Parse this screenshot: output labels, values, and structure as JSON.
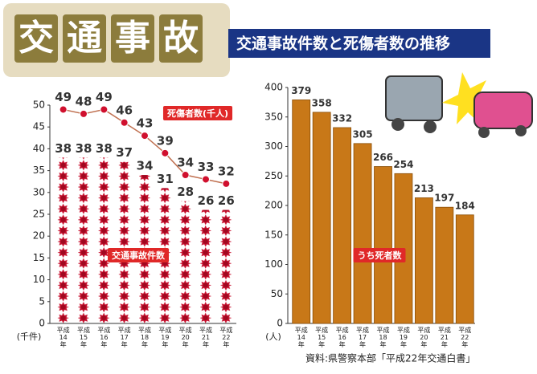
{
  "header": {
    "title": "交通事故",
    "subtitle": "交通事故件数と死傷者数の推移"
  },
  "source": "資料:県警察本部「平成22年交通白書」",
  "chart_data": [
    {
      "type": "bar",
      "y_unit": "(千件)",
      "categories": [
        "平成14年",
        "平成15年",
        "平成16年",
        "平成17年",
        "平成18年",
        "平成19年",
        "平成20年",
        "平成21年",
        "平成22年"
      ],
      "ylim": [
        0,
        50
      ],
      "yticks": [
        0,
        5,
        10,
        15,
        20,
        25,
        30,
        35,
        40,
        45,
        50
      ],
      "series": [
        {
          "name": "交通事故件数",
          "type": "bar",
          "color": "#c8102e",
          "values": [
            38,
            38,
            38,
            37,
            34,
            31,
            28,
            26,
            26
          ]
        },
        {
          "name": "死傷者数(千人)",
          "type": "line",
          "color": "#d0102e",
          "values": [
            49,
            48,
            49,
            46,
            43,
            39,
            34,
            33,
            32
          ]
        }
      ]
    },
    {
      "type": "bar",
      "y_unit": "(人)",
      "categories": [
        "平成14年",
        "平成15年",
        "平成16年",
        "平成17年",
        "平成18年",
        "平成19年",
        "平成20年",
        "平成21年",
        "平成22年"
      ],
      "ylim": [
        0,
        400
      ],
      "yticks": [
        0,
        50,
        100,
        150,
        200,
        250,
        300,
        350,
        400
      ],
      "series": [
        {
          "name": "うち死者数",
          "type": "bar",
          "color": "#c87818",
          "values": [
            379,
            358,
            332,
            305,
            266,
            254,
            213,
            197,
            184
          ]
        }
      ]
    }
  ]
}
